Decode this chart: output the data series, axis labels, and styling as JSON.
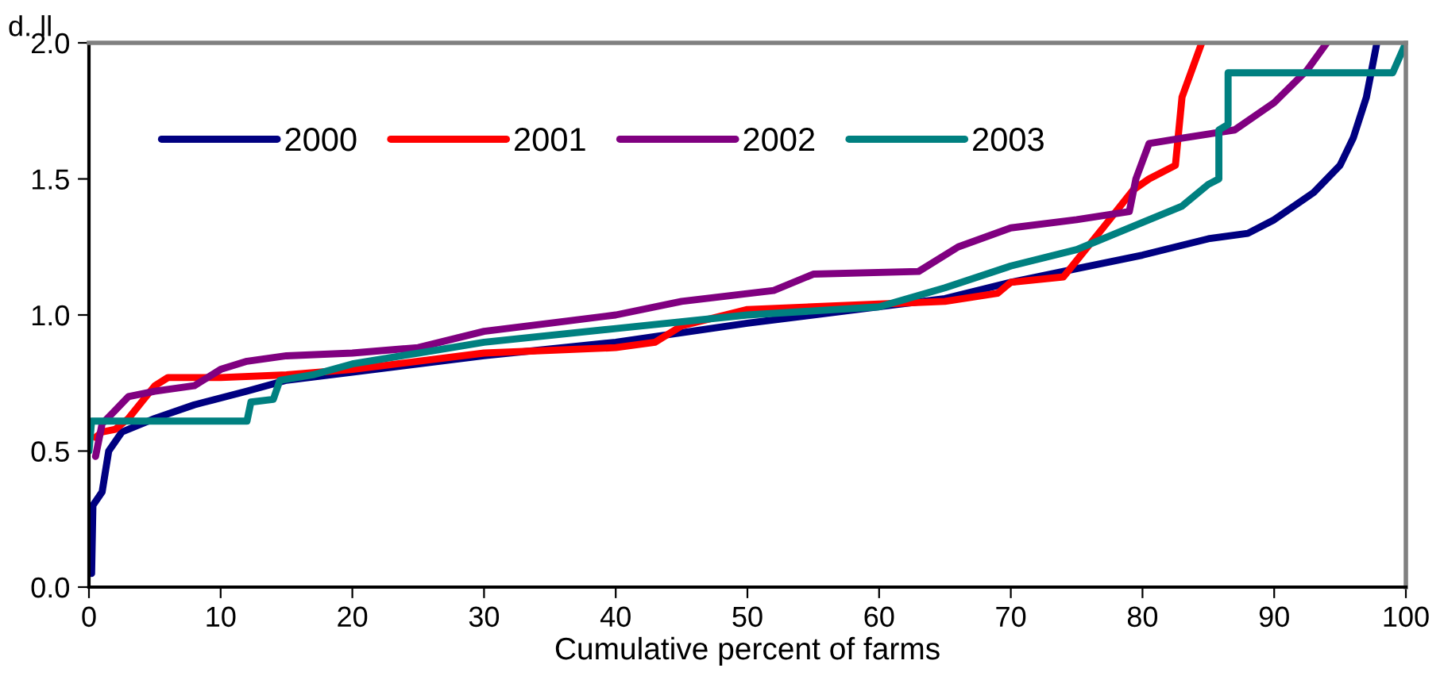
{
  "chart_data": {
    "type": "line",
    "xlabel": "Cumulative percent of farms",
    "ylabel": "d. ll",
    "xlim": [
      0,
      100
    ],
    "xticks": [
      0,
      10,
      20,
      30,
      40,
      50,
      60,
      70,
      80,
      90,
      100
    ],
    "ylim": [
      0,
      2
    ],
    "yticks": [
      {
        "value": 0,
        "label": "0.0"
      },
      {
        "value": 0.5,
        "label": "0.5"
      },
      {
        "value": 1,
        "label": "1.0"
      },
      {
        "value": 1.5,
        "label": "1.5"
      },
      {
        "value": 2,
        "label": "2.0"
      }
    ],
    "grid": false,
    "legend": "top left",
    "line_style": "solid",
    "marker": "none",
    "series": [
      {
        "name": "2000",
        "color": "#000080",
        "x": [
          0.2,
          0.3,
          1,
          1.5,
          2.5,
          5,
          8,
          12,
          15,
          20,
          30,
          40,
          50,
          60,
          65,
          70,
          75,
          80,
          85,
          88,
          90,
          93,
          95,
          96,
          97,
          97.8
        ],
        "values": [
          0.05,
          0.3,
          0.35,
          0.5,
          0.57,
          0.62,
          0.67,
          0.72,
          0.76,
          0.79,
          0.85,
          0.9,
          0.97,
          1.03,
          1.06,
          1.12,
          1.17,
          1.22,
          1.28,
          1.3,
          1.35,
          1.45,
          1.55,
          1.65,
          1.8,
          2.0
        ]
      },
      {
        "name": "2001",
        "color": "#ff0000",
        "x": [
          0.5,
          1,
          2,
          3,
          4,
          5,
          6,
          10,
          15,
          20,
          30,
          40,
          43,
          45,
          50,
          60,
          65,
          69,
          70,
          74,
          75,
          77,
          79.3,
          80.5,
          82.5,
          83,
          84.5
        ],
        "values": [
          0.55,
          0.57,
          0.58,
          0.62,
          0.68,
          0.74,
          0.77,
          0.77,
          0.78,
          0.8,
          0.86,
          0.88,
          0.9,
          0.96,
          1.02,
          1.04,
          1.05,
          1.08,
          1.12,
          1.14,
          1.2,
          1.32,
          1.46,
          1.5,
          1.55,
          1.8,
          2.0
        ]
      },
      {
        "name": "2002",
        "color": "#800080",
        "x": [
          0.5,
          1,
          2,
          3,
          5,
          8,
          10,
          12,
          15,
          20,
          25,
          30,
          35,
          40,
          45,
          52,
          55,
          63,
          66,
          70,
          75,
          79,
          79.5,
          80.5,
          83,
          87,
          90,
          92.5,
          94
        ],
        "values": [
          0.48,
          0.6,
          0.65,
          0.7,
          0.72,
          0.74,
          0.8,
          0.83,
          0.85,
          0.86,
          0.88,
          0.94,
          0.97,
          1.0,
          1.05,
          1.09,
          1.15,
          1.16,
          1.25,
          1.32,
          1.35,
          1.38,
          1.5,
          1.63,
          1.65,
          1.68,
          1.78,
          1.9,
          2.0
        ]
      },
      {
        "name": "2003",
        "color": "#008080",
        "x": [
          0,
          0.2,
          5,
          12,
          12.3,
          14,
          14.5,
          17,
          20,
          25,
          30,
          40,
          50,
          60,
          65,
          70,
          75,
          80,
          83,
          85,
          85.8,
          85.8,
          86.5,
          86.5,
          99,
          100
        ],
        "values": [
          0.5,
          0.61,
          0.61,
          0.61,
          0.68,
          0.69,
          0.76,
          0.78,
          0.82,
          0.86,
          0.9,
          0.95,
          1.0,
          1.03,
          1.1,
          1.18,
          1.24,
          1.34,
          1.4,
          1.48,
          1.5,
          1.68,
          1.7,
          1.89,
          1.89,
          2.0
        ]
      }
    ]
  }
}
